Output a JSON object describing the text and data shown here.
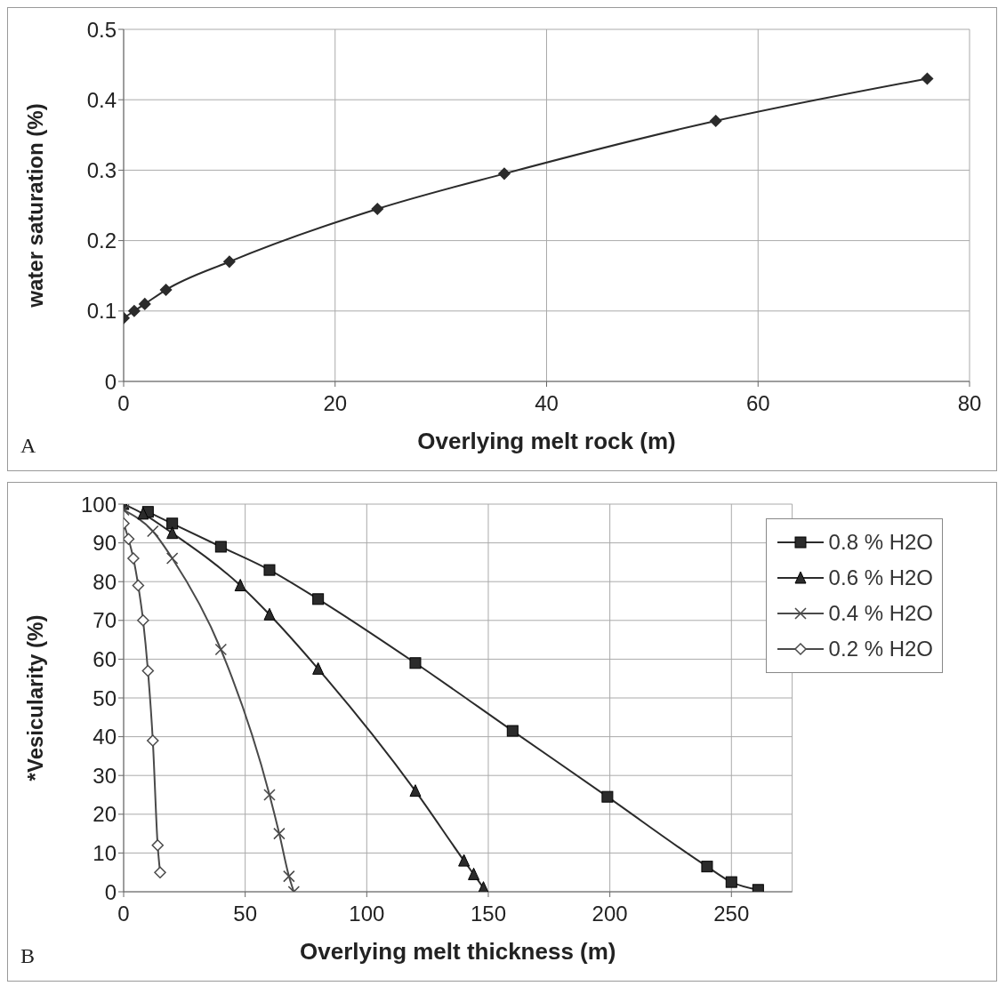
{
  "chart_data": [
    {
      "type": "line",
      "xlabel": "Overlying melt rock (m)",
      "ylabel": "water saturation (%)",
      "annotations": [
        "A"
      ],
      "xlim": [
        0,
        80
      ],
      "xticks": [
        0,
        20,
        40,
        60,
        80
      ],
      "ylim": [
        0,
        0.5
      ],
      "yticks": [
        0,
        0.1,
        0.2,
        0.3,
        0.4,
        0.5
      ],
      "grid": true,
      "legend": false,
      "marker": "diamond",
      "series": [
        {
          "color": "#2b2b2b",
          "x": [
            0,
            1,
            2,
            4,
            10,
            24,
            36,
            56,
            76
          ],
          "values": [
            0.09,
            0.1,
            0.11,
            0.13,
            0.17,
            0.245,
            0.295,
            0.37,
            0.43
          ]
        }
      ]
    },
    {
      "type": "line",
      "xlabel": "Overlying melt thickness (m)",
      "ylabel": "*Vesicularity (%)",
      "annotations": [
        "B"
      ],
      "xlim": [
        0,
        275
      ],
      "xticks": [
        0,
        50,
        100,
        150,
        200,
        250
      ],
      "ylim": [
        0,
        100
      ],
      "yticks": [
        0,
        10,
        20,
        30,
        40,
        50,
        60,
        70,
        80,
        90,
        100
      ],
      "grid": true,
      "legend": "top right",
      "series": [
        {
          "name": "0.8 % H2O",
          "color": "#2b2b2b",
          "marker": "square",
          "x": [
            10,
            20,
            40,
            60,
            80,
            120,
            160,
            199,
            240,
            250,
            261
          ],
          "values": [
            98,
            95,
            89,
            83,
            75.5,
            59,
            41.5,
            24.5,
            6.5,
            2.5,
            0.5
          ]
        },
        {
          "name": "0.6 % H2O",
          "color": "#2b2b2b",
          "marker": "triangle",
          "x": [
            0,
            8,
            20,
            48,
            60,
            80,
            120,
            140,
            144,
            148
          ],
          "values": [
            100,
            97.5,
            92.5,
            79,
            71.5,
            57.5,
            26,
            8,
            4.5,
            1
          ]
        },
        {
          "name": "0.4 % H2O",
          "color": "#4a4a4a",
          "marker": "cross",
          "x": [
            0,
            12,
            20,
            40,
            60,
            64,
            68,
            70
          ],
          "values": [
            98.5,
            93,
            86,
            62.5,
            25,
            15,
            4,
            0
          ]
        },
        {
          "name": "0.2 % H2O",
          "color": "#4a4a4a",
          "marker": "diamond",
          "x": [
            0,
            2,
            4,
            6,
            8,
            10,
            12,
            14,
            15
          ],
          "values": [
            95,
            91,
            86,
            79,
            70,
            57,
            39,
            12,
            5
          ]
        }
      ]
    }
  ]
}
